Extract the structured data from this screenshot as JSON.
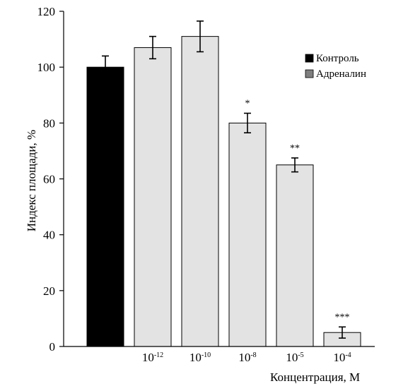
{
  "chart_data": {
    "type": "bar",
    "ylabel": "Индекс площади, %",
    "xlabel": "Концентрация, М",
    "ylim": [
      0,
      120
    ],
    "yticks": [
      0,
      20,
      40,
      60,
      80,
      100,
      120
    ],
    "grid": false,
    "legend_position": "top-right",
    "legend": [
      {
        "label": "Контроль",
        "color": "#000000"
      },
      {
        "label": "Адреналин",
        "color": "#7f7f7f"
      }
    ],
    "bars": [
      {
        "category_base": "",
        "category_exp": "",
        "value": 100,
        "error": 4,
        "significance": "",
        "color": "#000000",
        "series": "Контроль"
      },
      {
        "category_base": "10",
        "category_exp": "-12",
        "value": 107,
        "error": 4,
        "significance": "",
        "color": "#e3e3e3",
        "series": "Адреналин"
      },
      {
        "category_base": "10",
        "category_exp": "-10",
        "value": 111,
        "error": 5.5,
        "significance": "",
        "color": "#e3e3e3",
        "series": "Адреналин"
      },
      {
        "category_base": "10",
        "category_exp": "-8",
        "value": 80,
        "error": 3.5,
        "significance": "*",
        "color": "#e3e3e3",
        "series": "Адреналин"
      },
      {
        "category_base": "10",
        "category_exp": "-5",
        "value": 65,
        "error": 2.5,
        "significance": "**",
        "color": "#e3e3e3",
        "series": "Адреналин"
      },
      {
        "category_base": "10",
        "category_exp": "-4",
        "value": 5,
        "error": 2,
        "significance": "***",
        "color": "#e3e3e3",
        "series": "Адреналин"
      }
    ]
  }
}
